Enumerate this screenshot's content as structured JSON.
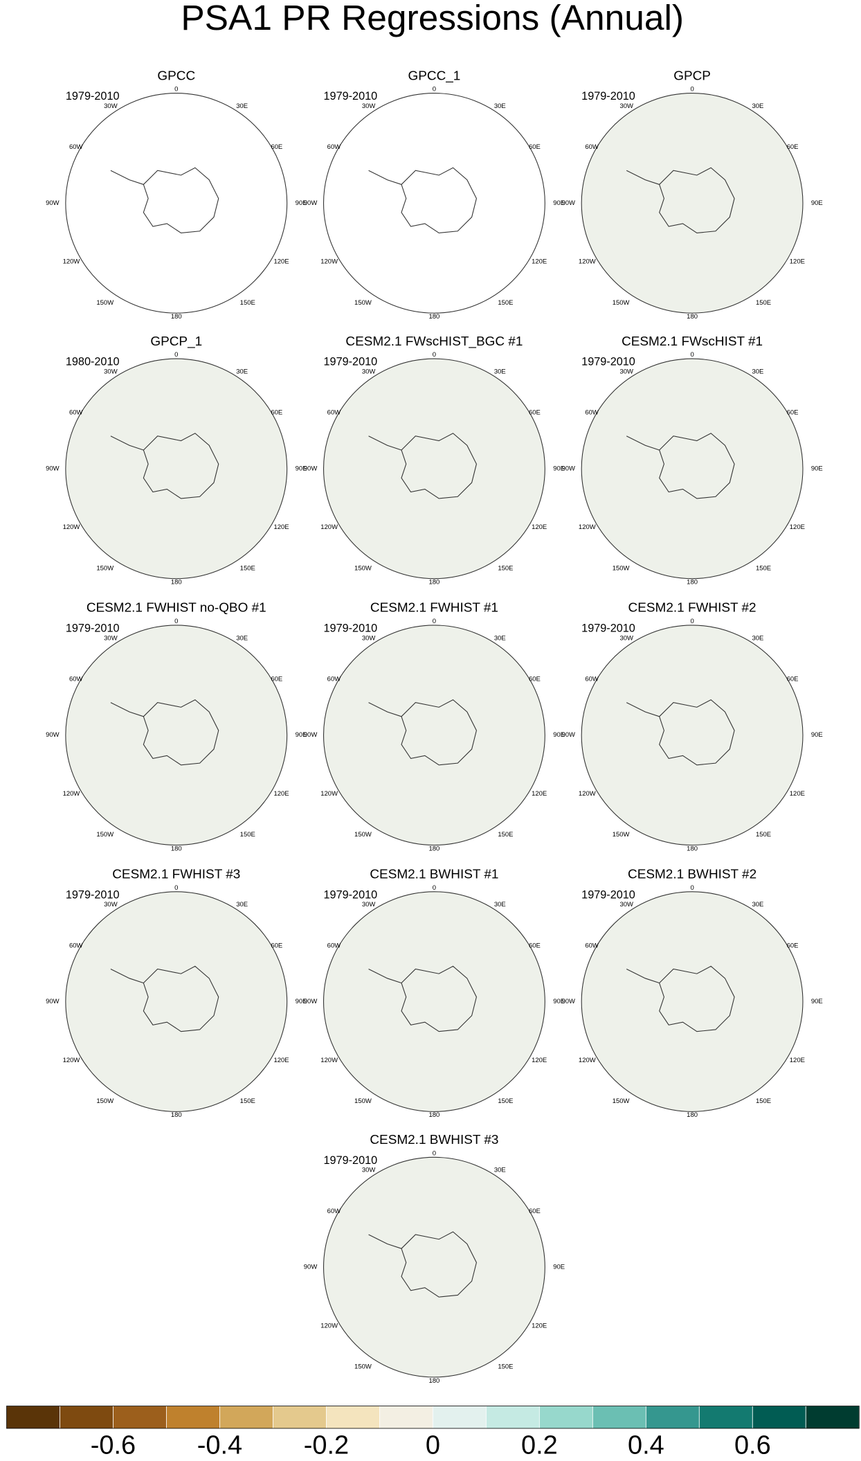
{
  "title": "PSA1 PR Regressions (Annual)",
  "longitude_labels": [
    "0",
    "30E",
    "60E",
    "90E",
    "120E",
    "150E",
    "180",
    "150W",
    "120W",
    "90W",
    "60W",
    "30W"
  ],
  "panels": [
    {
      "title": "GPCC",
      "period": "1979-2010",
      "color": "#ffffff"
    },
    {
      "title": "GPCC_1",
      "period": "1979-2010",
      "color": "#ffffff"
    },
    {
      "title": "GPCP",
      "period": "1979-2010",
      "color": "#eef1ea"
    },
    {
      "title": "GPCP_1",
      "period": "1980-2010",
      "color": "#eef1ea"
    },
    {
      "title": "CESM2.1 FWscHIST_BGC #1",
      "period": "1979-2010",
      "color": "#eef1ea"
    },
    {
      "title": "CESM2.1 FWscHIST #1",
      "period": "1979-2010",
      "color": "#eef1ea"
    },
    {
      "title": "CESM2.1 FWHIST no-QBO #1",
      "period": "1979-2010",
      "color": "#eef1ea"
    },
    {
      "title": "CESM2.1 FWHIST #1",
      "period": "1979-2010",
      "color": "#eef1ea"
    },
    {
      "title": "CESM2.1 FWHIST #2",
      "period": "1979-2010",
      "color": "#eef1ea"
    },
    {
      "title": "CESM2.1 FWHIST #3",
      "period": "1979-2010",
      "color": "#eef1ea"
    },
    {
      "title": "CESM2.1 BWHIST #1",
      "period": "1979-2010",
      "color": "#eef1ea"
    },
    {
      "title": "CESM2.1 BWHIST #2",
      "period": "1979-2010",
      "color": "#eef1ea"
    },
    {
      "title": "CESM2.1 BWHIST #3",
      "period": "1979-2010",
      "color": "#eef1ea"
    }
  ],
  "colorbar": {
    "colors": [
      "#5a3408",
      "#7e4a10",
      "#9c5f1c",
      "#bf812d",
      "#d2a75a",
      "#e4c98d",
      "#f4e4be",
      "#f3efe3",
      "#e3f1ee",
      "#c5eae3",
      "#97d8cc",
      "#6bbfb3",
      "#35978f",
      "#137a70",
      "#015c53",
      "#003c30"
    ],
    "range": [
      -0.8,
      0.8
    ],
    "ticks": [
      -0.6,
      -0.4,
      -0.2,
      0,
      0.2,
      0.4,
      0.6
    ]
  }
}
